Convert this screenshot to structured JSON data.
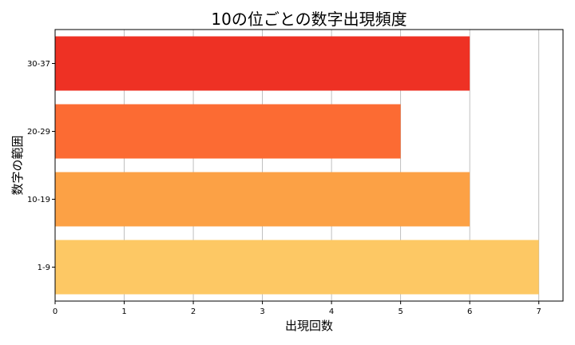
{
  "chart_data": {
    "type": "bar",
    "orientation": "horizontal",
    "title": "10の位ごとの数字出現頻度",
    "xlabel": "出現回数",
    "ylabel": "数字の範囲",
    "categories": [
      "1-9",
      "10-19",
      "20-29",
      "30-37"
    ],
    "values": [
      7,
      6,
      5,
      6
    ],
    "colors": [
      "#fdc864",
      "#fca145",
      "#fc6b33",
      "#ee3124"
    ],
    "xlim": [
      0,
      7.35
    ],
    "xticks": [
      0,
      1,
      2,
      3,
      4,
      5,
      6,
      7
    ],
    "grid": "vertical"
  }
}
